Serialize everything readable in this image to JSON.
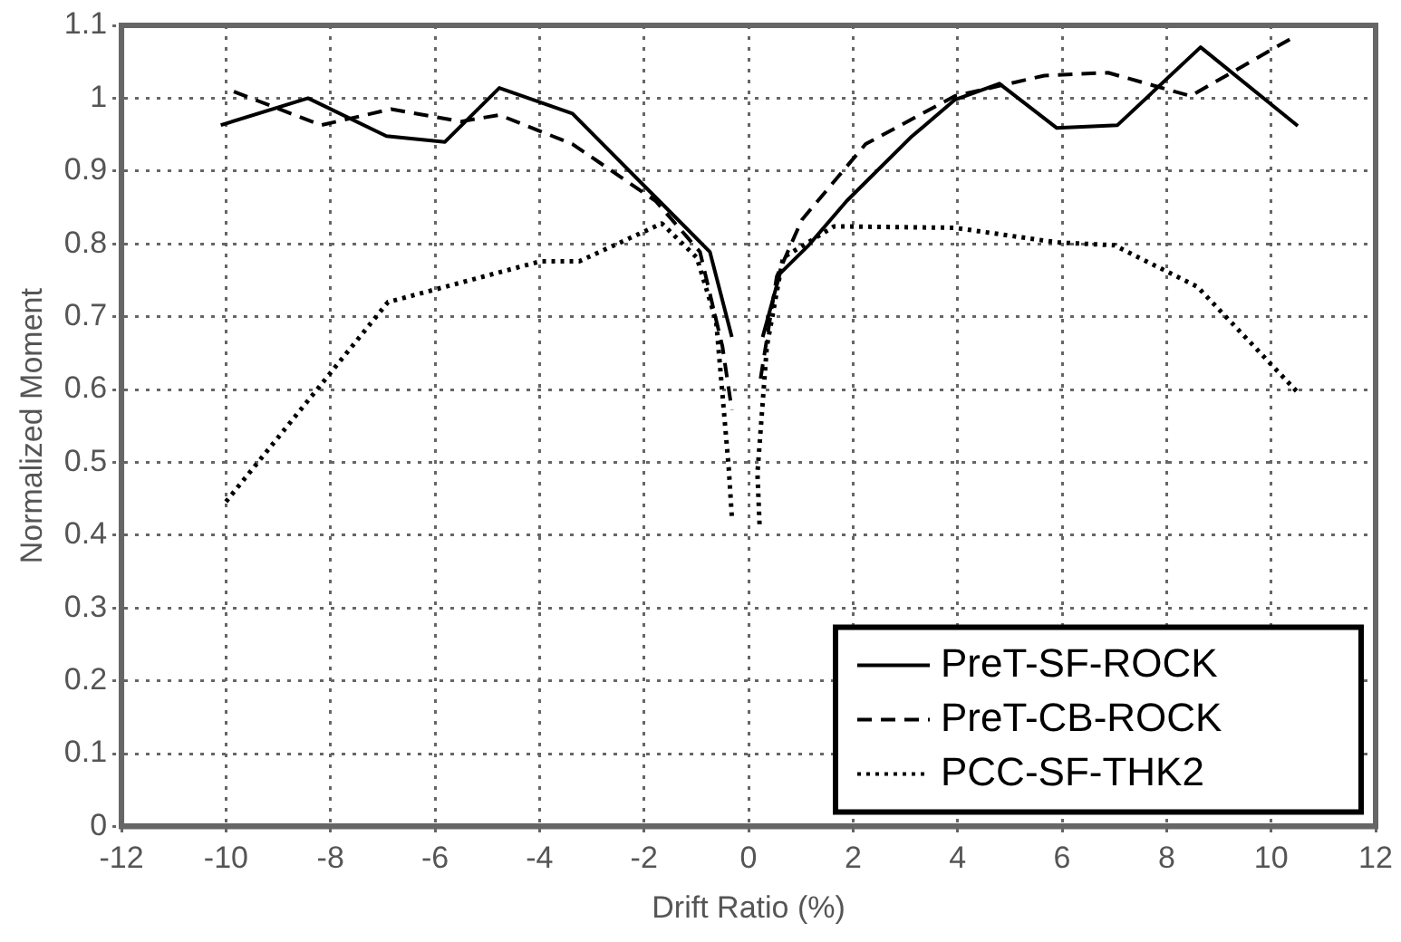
{
  "chart_data": {
    "type": "line",
    "xlabel": "Drift Ratio (%)",
    "ylabel": "Normalized Moment",
    "xlim": [
      -12,
      12
    ],
    "xticks": [
      -12,
      -10,
      -8,
      -6,
      -4,
      -2,
      0,
      2,
      4,
      6,
      8,
      10,
      12
    ],
    "ylim": [
      0,
      1.1
    ],
    "yticks": [
      0,
      0.1,
      0.2,
      0.3,
      0.4,
      0.5,
      0.6,
      0.7,
      0.8,
      0.9,
      1,
      1.1
    ],
    "grid": true,
    "legend": "bottom right",
    "marker": "none",
    "series": [
      {
        "name": "PreT-SF-ROCK",
        "color": "#000000",
        "line_style": "solid",
        "x": [
          -10.1,
          -8.43,
          -6.93,
          -5.81,
          -4.77,
          -3.37,
          -1.78,
          -0.74,
          -0.32,
          null,
          0.27,
          0.6,
          1.15,
          1.88,
          3.1,
          3.95,
          4.8,
          5.9,
          7.06,
          8.65,
          10.51
        ],
        "values": [
          0.963,
          1.0,
          0.948,
          0.94,
          1.014,
          0.979,
          0.864,
          0.789,
          0.672,
          null,
          0.672,
          0.759,
          0.798,
          0.859,
          0.946,
          0.998,
          1.02,
          0.959,
          0.963,
          1.07,
          0.962
        ]
      },
      {
        "name": "PreT-CB-ROCK",
        "color": "#000000",
        "line_style": "dashed",
        "x": [
          -9.85,
          -8.98,
          -8.18,
          -6.84,
          -5.5,
          -4.77,
          -3.37,
          -1.78,
          -0.93,
          -0.5,
          -0.32,
          null,
          0.23,
          0.54,
          1.02,
          2.24,
          3.95,
          5.66,
          6.88,
          8.46,
          10.36
        ],
        "values": [
          1.009,
          0.985,
          0.963,
          0.985,
          0.968,
          0.977,
          0.937,
          0.859,
          0.789,
          0.659,
          0.572,
          null,
          0.615,
          0.755,
          0.833,
          0.937,
          1.003,
          1.031,
          1.035,
          1.003,
          1.081
        ]
      },
      {
        "name": "PCC-SF-THK2",
        "color": "#000000",
        "line_style": "dotted",
        "x": [
          -10.0,
          -6.9,
          -3.98,
          -3.24,
          -1.66,
          -0.99,
          -0.62,
          -0.38,
          -0.32,
          null,
          0.21,
          0.17,
          0.35,
          0.66,
          1.64,
          3.95,
          5.9,
          7.0,
          8.59,
          10.51
        ],
        "values": [
          0.446,
          0.72,
          0.776,
          0.776,
          0.828,
          0.781,
          0.694,
          0.493,
          0.425,
          null,
          0.415,
          0.485,
          0.659,
          0.781,
          0.824,
          0.822,
          0.802,
          0.798,
          0.741,
          0.596
        ]
      }
    ]
  }
}
